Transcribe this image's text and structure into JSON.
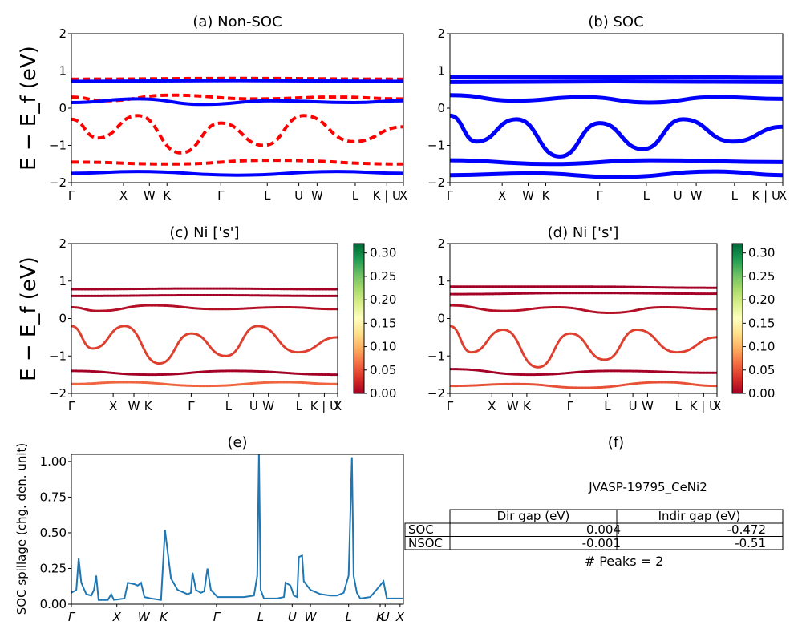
{
  "chart_data": [
    {
      "panel": "a",
      "type": "line",
      "title": "(a) Non-SOC",
      "ylabel": "E − E_f (eV)",
      "ylim": [
        -2,
        2
      ],
      "yticks": [
        "2",
        "1",
        "0",
        "−1",
        "−2"
      ],
      "xticks": [
        "Γ",
        "X",
        "W",
        "K",
        "Γ",
        "L",
        "U",
        "W",
        "L",
        "K | U",
        "X"
      ],
      "series": [
        {
          "values": [
            [
              0,
              0.78
            ],
            [
              0.5,
              0.8
            ],
            [
              1,
              0.78
            ]
          ],
          "color": "#ff0000"
        },
        {
          "values": [
            [
              0,
              0.72
            ],
            [
              0.5,
              0.74
            ],
            [
              1,
              0.72
            ]
          ],
          "color": "#0000ff"
        },
        {
          "values": [
            [
              0,
              0.3
            ],
            [
              0.1,
              0.2
            ],
            [
              0.3,
              0.35
            ],
            [
              0.55,
              0.25
            ],
            [
              0.8,
              0.3
            ],
            [
              1,
              0.25
            ]
          ],
          "color": "#ff0000"
        },
        {
          "values": [
            [
              0,
              0.15
            ],
            [
              0.2,
              0.25
            ],
            [
              0.4,
              0.1
            ],
            [
              0.6,
              0.2
            ],
            [
              0.85,
              0.15
            ],
            [
              1,
              0.2
            ]
          ],
          "color": "#0000ff"
        },
        {
          "values": [
            [
              0,
              -0.3
            ],
            [
              0.08,
              -0.8
            ],
            [
              0.2,
              -0.2
            ],
            [
              0.33,
              -1.2
            ],
            [
              0.45,
              -0.4
            ],
            [
              0.58,
              -1.0
            ],
            [
              0.7,
              -0.2
            ],
            [
              0.85,
              -0.9
            ],
            [
              1,
              -0.5
            ]
          ],
          "color": "#ff0000"
        },
        {
          "values": [
            [
              0,
              -1.45
            ],
            [
              0.3,
              -1.5
            ],
            [
              0.6,
              -1.4
            ],
            [
              1,
              -1.5
            ]
          ],
          "color": "#ff0000"
        },
        {
          "values": [
            [
              0,
              -1.75
            ],
            [
              0.2,
              -1.7
            ],
            [
              0.5,
              -1.8
            ],
            [
              0.8,
              -1.7
            ],
            [
              1,
              -1.75
            ]
          ],
          "color": "#0000ff"
        }
      ]
    },
    {
      "panel": "b",
      "type": "line",
      "title": "(b) SOC",
      "ylim": [
        -2,
        2
      ],
      "yticks": [
        "2",
        "1",
        "0",
        "−1",
        "−2"
      ],
      "xticks": [
        "Γ",
        "X",
        "W",
        "K",
        "Γ",
        "L",
        "U",
        "W",
        "L",
        "K | U",
        "X"
      ],
      "series": [
        {
          "values": [
            [
              0,
              0.85
            ],
            [
              0.5,
              0.85
            ],
            [
              1,
              0.82
            ]
          ],
          "color": "#0000ff"
        },
        {
          "values": [
            [
              0,
              0.7
            ],
            [
              0.5,
              0.72
            ],
            [
              1,
              0.7
            ]
          ],
          "color": "#0000ff"
        },
        {
          "values": [
            [
              0,
              0.35
            ],
            [
              0.2,
              0.2
            ],
            [
              0.4,
              0.3
            ],
            [
              0.6,
              0.15
            ],
            [
              0.8,
              0.3
            ],
            [
              1,
              0.25
            ]
          ],
          "color": "#0000ff"
        },
        {
          "values": [
            [
              0,
              -0.2
            ],
            [
              0.08,
              -0.9
            ],
            [
              0.2,
              -0.3
            ],
            [
              0.33,
              -1.3
            ],
            [
              0.45,
              -0.4
            ],
            [
              0.58,
              -1.1
            ],
            [
              0.7,
              -0.3
            ],
            [
              0.85,
              -0.9
            ],
            [
              1,
              -0.5
            ]
          ],
          "color": "#0000ff"
        },
        {
          "values": [
            [
              0,
              -1.4
            ],
            [
              0.3,
              -1.5
            ],
            [
              0.6,
              -1.4
            ],
            [
              1,
              -1.45
            ]
          ],
          "color": "#0000ff"
        },
        {
          "values": [
            [
              0,
              -1.8
            ],
            [
              0.25,
              -1.75
            ],
            [
              0.5,
              -1.85
            ],
            [
              0.8,
              -1.7
            ],
            [
              1,
              -1.8
            ]
          ],
          "color": "#0000ff"
        }
      ]
    },
    {
      "panel": "c",
      "type": "scatter",
      "title": "(c)  Ni ['s']",
      "ylabel": "E − E_f (eV)",
      "ylim": [
        -2,
        2
      ],
      "yticks": [
        "2",
        "1",
        "0",
        "−1",
        "−2"
      ],
      "xticks": [
        "Γ",
        "X",
        "W",
        "K",
        "Γ",
        "L",
        "U",
        "W",
        "L",
        "K | U",
        "X"
      ],
      "colorbar": {
        "min": 0.0,
        "max": 0.32,
        "ticks": [
          "0.00",
          "0.05",
          "0.10",
          "0.15",
          "0.20",
          "0.25",
          "0.30"
        ],
        "colormap": "RdYlGn"
      },
      "bands": [
        {
          "values": [
            [
              0,
              0.78
            ],
            [
              0.5,
              0.8
            ],
            [
              1,
              0.78
            ]
          ],
          "weight": 0.0
        },
        {
          "values": [
            [
              0,
              0.6
            ],
            [
              0.5,
              0.62
            ],
            [
              1,
              0.6
            ]
          ],
          "weight": 0.0
        },
        {
          "values": [
            [
              0,
              0.3
            ],
            [
              0.1,
              0.2
            ],
            [
              0.3,
              0.35
            ],
            [
              0.55,
              0.25
            ],
            [
              0.8,
              0.3
            ],
            [
              1,
              0.25
            ]
          ],
          "weight": 0.01
        },
        {
          "values": [
            [
              0,
              -0.2
            ],
            [
              0.08,
              -0.8
            ],
            [
              0.2,
              -0.2
            ],
            [
              0.33,
              -1.2
            ],
            [
              0.45,
              -0.4
            ],
            [
              0.58,
              -1.0
            ],
            [
              0.7,
              -0.2
            ],
            [
              0.85,
              -0.9
            ],
            [
              1,
              -0.5
            ]
          ],
          "weight": 0.04
        },
        {
          "values": [
            [
              0,
              -1.4
            ],
            [
              0.3,
              -1.5
            ],
            [
              0.6,
              -1.4
            ],
            [
              1,
              -1.5
            ]
          ],
          "weight": 0.0
        },
        {
          "values": [
            [
              0,
              -1.75
            ],
            [
              0.2,
              -1.7
            ],
            [
              0.5,
              -1.8
            ],
            [
              0.8,
              -1.7
            ],
            [
              1,
              -1.75
            ]
          ],
          "weight": 0.06
        }
      ]
    },
    {
      "panel": "d",
      "type": "scatter",
      "title": "(d) Ni ['s']",
      "ylim": [
        -2,
        2
      ],
      "yticks": [
        "2",
        "1",
        "0",
        "−1",
        "−2"
      ],
      "xticks": [
        "Γ",
        "X",
        "W",
        "K",
        "Γ",
        "L",
        "U",
        "W",
        "L",
        "K | U",
        "X"
      ],
      "colorbar": {
        "min": 0.0,
        "max": 0.32,
        "ticks": [
          "0.00",
          "0.05",
          "0.10",
          "0.15",
          "0.20",
          "0.25",
          "0.30"
        ],
        "colormap": "RdYlGn"
      },
      "bands": [
        {
          "values": [
            [
              0,
              0.85
            ],
            [
              0.5,
              0.85
            ],
            [
              1,
              0.82
            ]
          ],
          "weight": 0.0
        },
        {
          "values": [
            [
              0,
              0.65
            ],
            [
              0.5,
              0.68
            ],
            [
              1,
              0.66
            ]
          ],
          "weight": 0.0
        },
        {
          "values": [
            [
              0,
              0.35
            ],
            [
              0.2,
              0.2
            ],
            [
              0.4,
              0.3
            ],
            [
              0.6,
              0.15
            ],
            [
              0.8,
              0.3
            ],
            [
              1,
              0.25
            ]
          ],
          "weight": 0.01
        },
        {
          "values": [
            [
              0,
              -0.2
            ],
            [
              0.08,
              -0.9
            ],
            [
              0.2,
              -0.3
            ],
            [
              0.33,
              -1.3
            ],
            [
              0.45,
              -0.4
            ],
            [
              0.58,
              -1.1
            ],
            [
              0.7,
              -0.3
            ],
            [
              0.85,
              -0.9
            ],
            [
              1,
              -0.5
            ]
          ],
          "weight": 0.04
        },
        {
          "values": [
            [
              0,
              -1.35
            ],
            [
              0.3,
              -1.5
            ],
            [
              0.6,
              -1.4
            ],
            [
              1,
              -1.45
            ]
          ],
          "weight": 0.0
        },
        {
          "values": [
            [
              0,
              -1.8
            ],
            [
              0.25,
              -1.75
            ],
            [
              0.5,
              -1.85
            ],
            [
              0.8,
              -1.7
            ],
            [
              1,
              -1.8
            ]
          ],
          "weight": 0.05
        }
      ]
    },
    {
      "panel": "e",
      "type": "line",
      "title": "(e)",
      "ylabel": "SOC spillage (chg. den. unit)",
      "ylim": [
        0,
        1.05
      ],
      "yticks": [
        "0.00",
        "0.25",
        "0.50",
        "0.75",
        "1.00"
      ],
      "xticks": [
        "Γ",
        "X",
        "W",
        "K",
        "Γ",
        "L",
        "U",
        "W",
        "L",
        "K",
        "U",
        "X"
      ],
      "series": [
        {
          "color": "#1f77b4",
          "values": [
            [
              0,
              0.08
            ],
            [
              0.015,
              0.1
            ],
            [
              0.022,
              0.32
            ],
            [
              0.03,
              0.15
            ],
            [
              0.045,
              0.07
            ],
            [
              0.06,
              0.06
            ],
            [
              0.068,
              0.1
            ],
            [
              0.075,
              0.2
            ],
            [
              0.082,
              0.03
            ],
            [
              0.11,
              0.03
            ],
            [
              0.12,
              0.07
            ],
            [
              0.128,
              0.03
            ],
            [
              0.16,
              0.04
            ],
            [
              0.17,
              0.15
            ],
            [
              0.19,
              0.14
            ],
            [
              0.2,
              0.13
            ],
            [
              0.21,
              0.15
            ],
            [
              0.22,
              0.05
            ],
            [
              0.24,
              0.04
            ],
            [
              0.27,
              0.03
            ],
            [
              0.282,
              0.52
            ],
            [
              0.3,
              0.18
            ],
            [
              0.32,
              0.1
            ],
            [
              0.35,
              0.07
            ],
            [
              0.36,
              0.08
            ],
            [
              0.365,
              0.22
            ],
            [
              0.375,
              0.1
            ],
            [
              0.39,
              0.08
            ],
            [
              0.4,
              0.09
            ],
            [
              0.41,
              0.25
            ],
            [
              0.42,
              0.1
            ],
            [
              0.44,
              0.05
            ],
            [
              0.48,
              0.05
            ],
            [
              0.52,
              0.05
            ],
            [
              0.55,
              0.06
            ],
            [
              0.56,
              0.2
            ],
            [
              0.565,
              1.06
            ],
            [
              0.57,
              0.1
            ],
            [
              0.58,
              0.04
            ],
            [
              0.62,
              0.04
            ],
            [
              0.64,
              0.05
            ],
            [
              0.645,
              0.15
            ],
            [
              0.66,
              0.13
            ],
            [
              0.67,
              0.06
            ],
            [
              0.68,
              0.05
            ],
            [
              0.685,
              0.33
            ],
            [
              0.695,
              0.34
            ],
            [
              0.7,
              0.16
            ],
            [
              0.72,
              0.1
            ],
            [
              0.75,
              0.07
            ],
            [
              0.78,
              0.06
            ],
            [
              0.8,
              0.06
            ],
            [
              0.82,
              0.08
            ],
            [
              0.835,
              0.2
            ],
            [
              0.845,
              1.03
            ],
            [
              0.85,
              0.2
            ],
            [
              0.86,
              0.08
            ],
            [
              0.87,
              0.04
            ],
            [
              0.9,
              0.05
            ],
            [
              0.915,
              0.09
            ],
            [
              0.94,
              0.16
            ],
            [
              0.95,
              0.04
            ],
            [
              1,
              0.04
            ]
          ]
        }
      ]
    }
  ],
  "panel_f": {
    "title": "(f)",
    "material": "JVASP-19795_CeNi2",
    "table": {
      "headers": [
        "Dir gap (eV)",
        "Indir gap (eV)"
      ],
      "rows": [
        {
          "label": "SOC",
          "dir": "0.004",
          "indir": "-0.472"
        },
        {
          "label": "NSOC",
          "dir": "-0.001",
          "indir": "-0.51"
        }
      ]
    },
    "peaks": "# Peaks = 2"
  }
}
